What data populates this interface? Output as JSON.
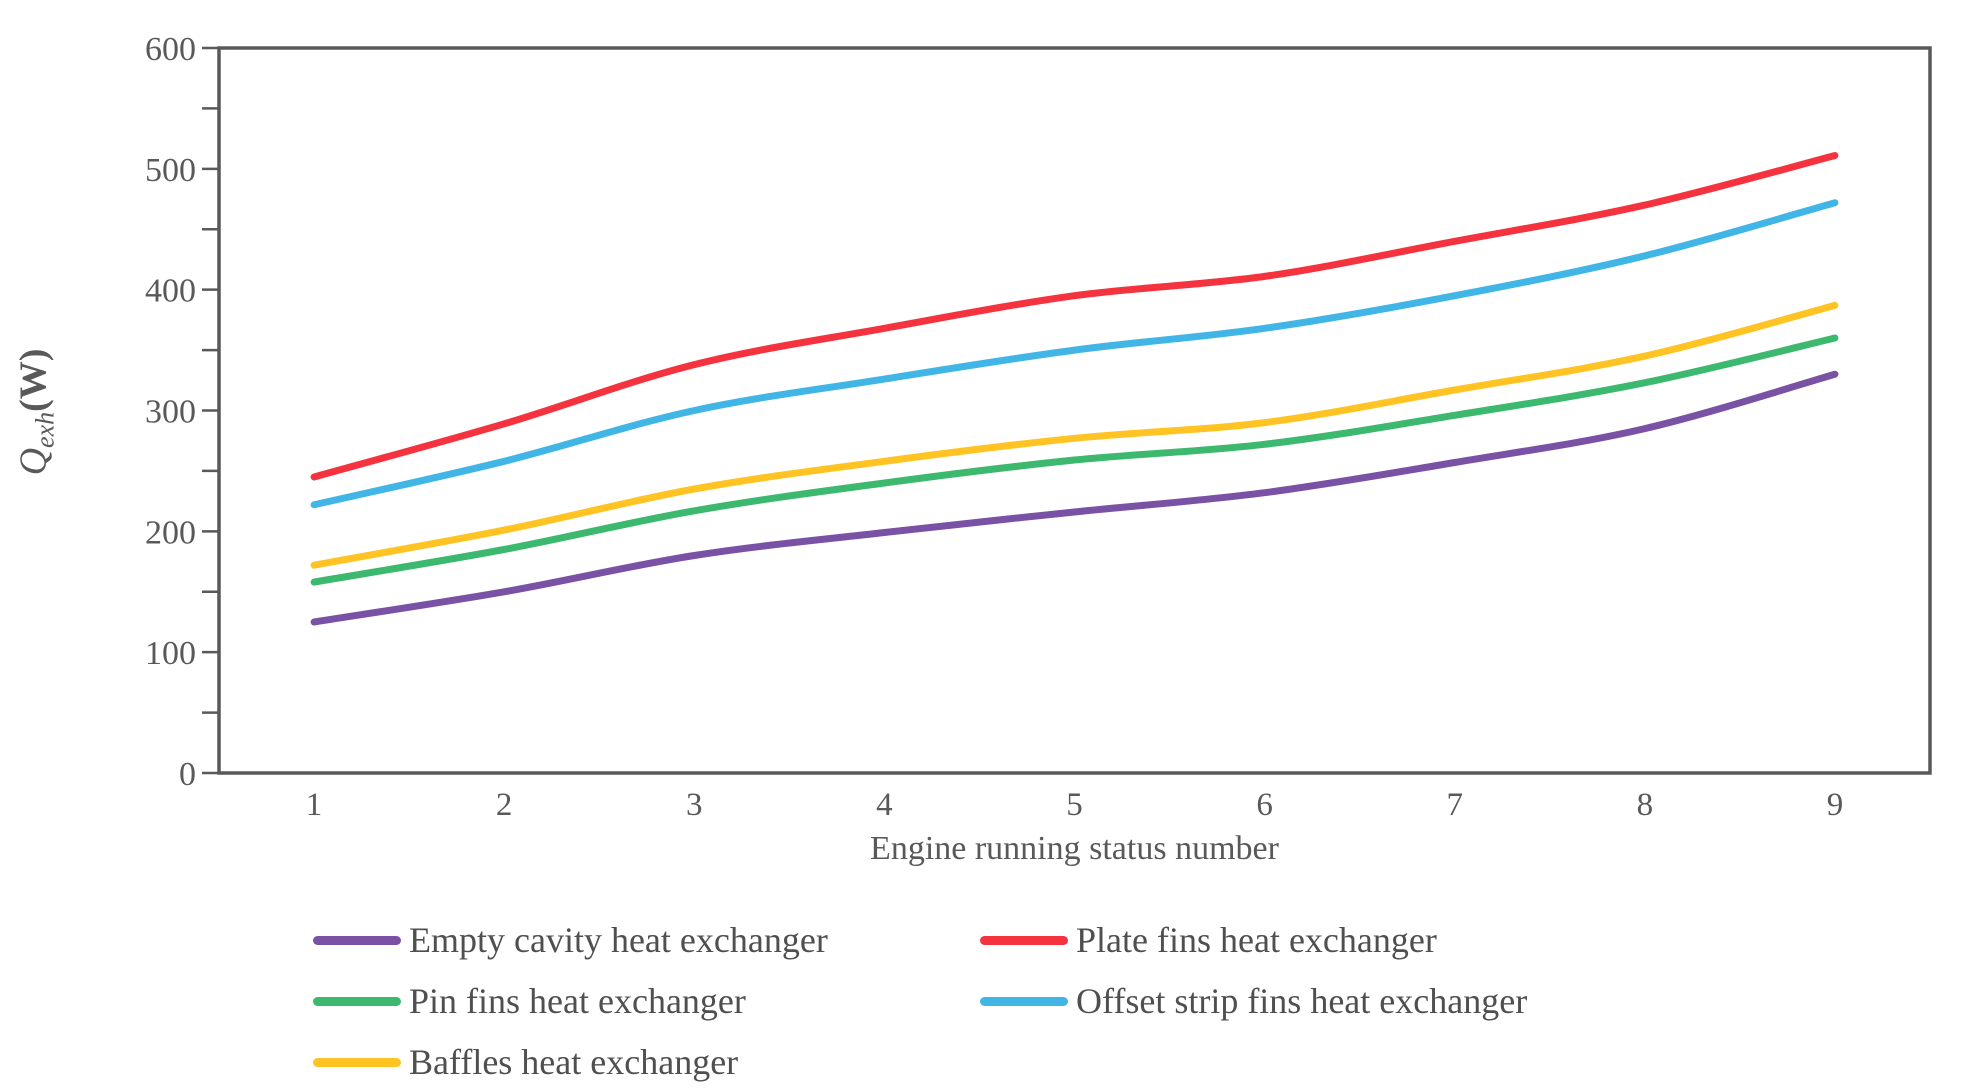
{
  "chart_data": {
    "type": "line",
    "title": "",
    "xlabel": "Engine running status number",
    "ylabel": {
      "base": "Q",
      "subscript": "exh",
      "unit": "(W)"
    },
    "x": [
      1,
      2,
      3,
      4,
      5,
      6,
      7,
      8,
      9
    ],
    "xticks": [
      "1",
      "2",
      "3",
      "4",
      "5",
      "6",
      "7",
      "8",
      "9"
    ],
    "yticks": [
      0,
      100,
      200,
      300,
      400,
      500,
      600
    ],
    "ytick_minor_step": 50,
    "ylim": [
      0,
      600
    ],
    "grid": false,
    "legend_position": "bottom-two-columns",
    "series": [
      {
        "name": "Empty cavity heat exchanger",
        "color": "#7A52A5",
        "values": [
          125,
          150,
          180,
          199,
          216,
          232,
          257,
          285,
          330
        ]
      },
      {
        "name": "Plate fins heat exchanger",
        "color": "#F5333F",
        "values": [
          245,
          289,
          338,
          368,
          395,
          411,
          440,
          470,
          511
        ]
      },
      {
        "name": "Pin fins heat exchanger",
        "color": "#3CB96F",
        "values": [
          158,
          185,
          217,
          240,
          259,
          272,
          296,
          323,
          360
        ]
      },
      {
        "name": "Offset strip fins heat exchanger",
        "color": "#41B6E6",
        "values": [
          222,
          258,
          300,
          326,
          350,
          368,
          395,
          428,
          472
        ]
      },
      {
        "name": "Baffles heat exchanger",
        "color": "#FFC424",
        "values": [
          172,
          201,
          235,
          258,
          277,
          290,
          317,
          345,
          387
        ]
      }
    ],
    "colors": {
      "axis_line": "#595959",
      "tick_text": "#595959",
      "legend_text": "#4f4f4f",
      "background": "#ffffff"
    }
  }
}
